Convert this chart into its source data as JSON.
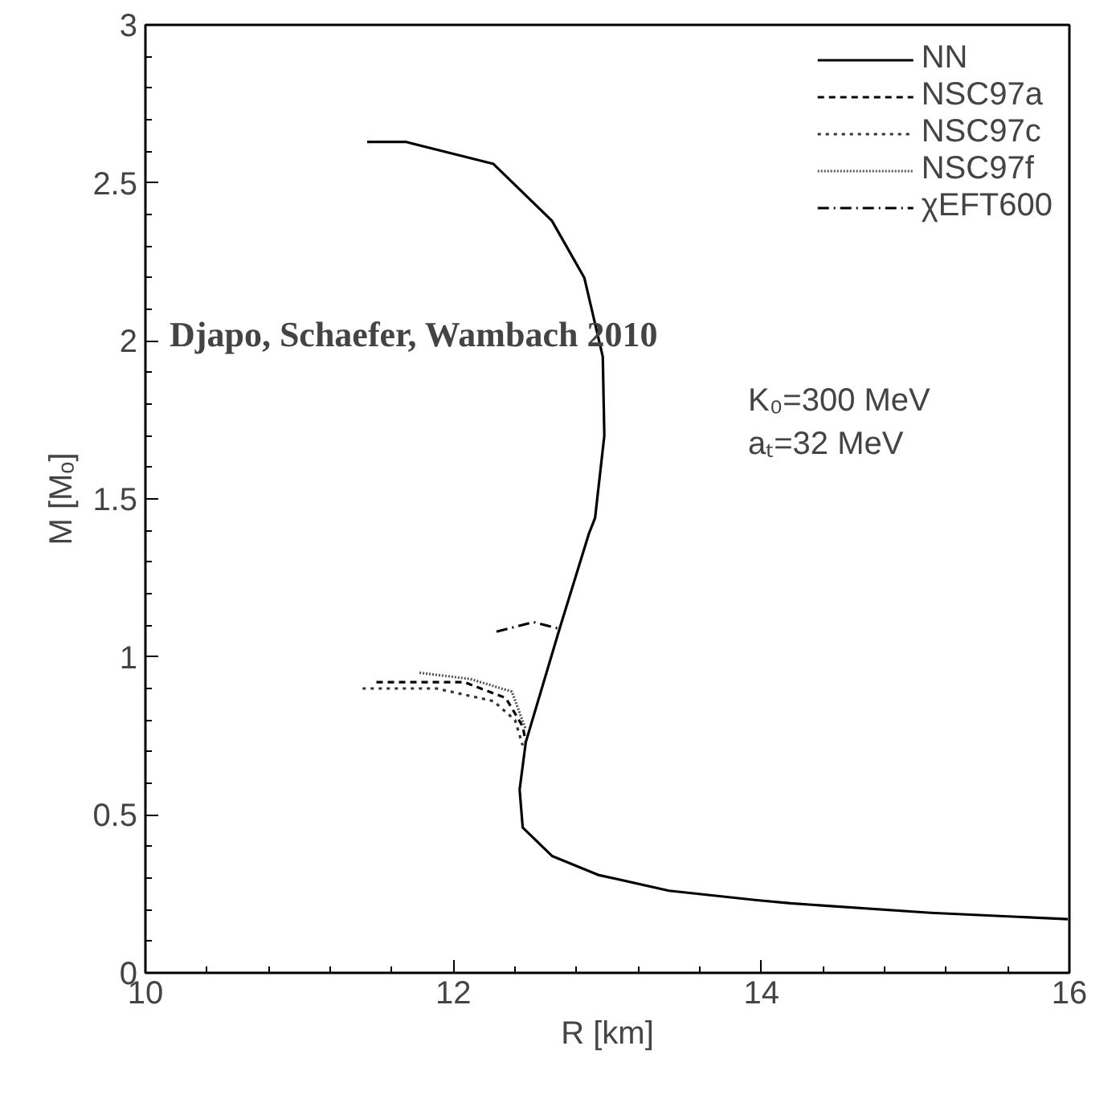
{
  "chart_data": {
    "type": "line",
    "xlabel": "R [km]",
    "ylabel": "M [Mₒ]",
    "xlim": [
      10,
      16
    ],
    "ylim": [
      0,
      3
    ],
    "xticks": [
      10,
      12,
      14,
      16
    ],
    "yticks": [
      0,
      0.5,
      1,
      1.5,
      2,
      2.5,
      3
    ],
    "grid": false,
    "legend": "top right",
    "marker": "none",
    "annotations": [
      "Djapo, Schaefer, Wambach  2010",
      "K₀=300 MeV",
      "aₜ=32 MeV"
    ],
    "series": [
      {
        "name": "NN",
        "color": "#000000",
        "line_style": "solid",
        "x": [
          11.44,
          11.69,
          12.26,
          12.64,
          12.85,
          12.97,
          12.98,
          12.92,
          12.88,
          12.69,
          12.47,
          12.43,
          12.45,
          12.64,
          12.94,
          13.4,
          13.97,
          14.19,
          15.1,
          15.99
        ],
        "values": [
          2.63,
          2.63,
          2.56,
          2.38,
          2.2,
          1.95,
          1.7,
          1.44,
          1.39,
          1.09,
          0.73,
          0.58,
          0.46,
          0.37,
          0.31,
          0.26,
          0.23,
          0.22,
          0.19,
          0.17
        ]
      },
      {
        "name": "NSC97a",
        "color": "#000000",
        "line_style": "dashed",
        "x": [
          11.5,
          12.07,
          12.34,
          12.45,
          12.47
        ],
        "values": [
          0.92,
          0.92,
          0.87,
          0.78,
          0.73
        ]
      },
      {
        "name": "NSC97c",
        "color": "#333333",
        "line_style": "dotted",
        "x": [
          11.41,
          11.89,
          12.26,
          12.4,
          12.45
        ],
        "values": [
          0.9,
          0.9,
          0.86,
          0.8,
          0.72
        ]
      },
      {
        "name": "NSC97f",
        "color": "#555555",
        "line_style": "finedotted",
        "x": [
          11.78,
          12.11,
          12.38,
          12.47
        ],
        "values": [
          0.95,
          0.93,
          0.89,
          0.77
        ]
      },
      {
        "name": "χEFT600",
        "color": "#000000",
        "line_style": "dashdot",
        "x": [
          12.28,
          12.52,
          12.68
        ],
        "values": [
          1.08,
          1.11,
          1.09
        ]
      }
    ]
  }
}
